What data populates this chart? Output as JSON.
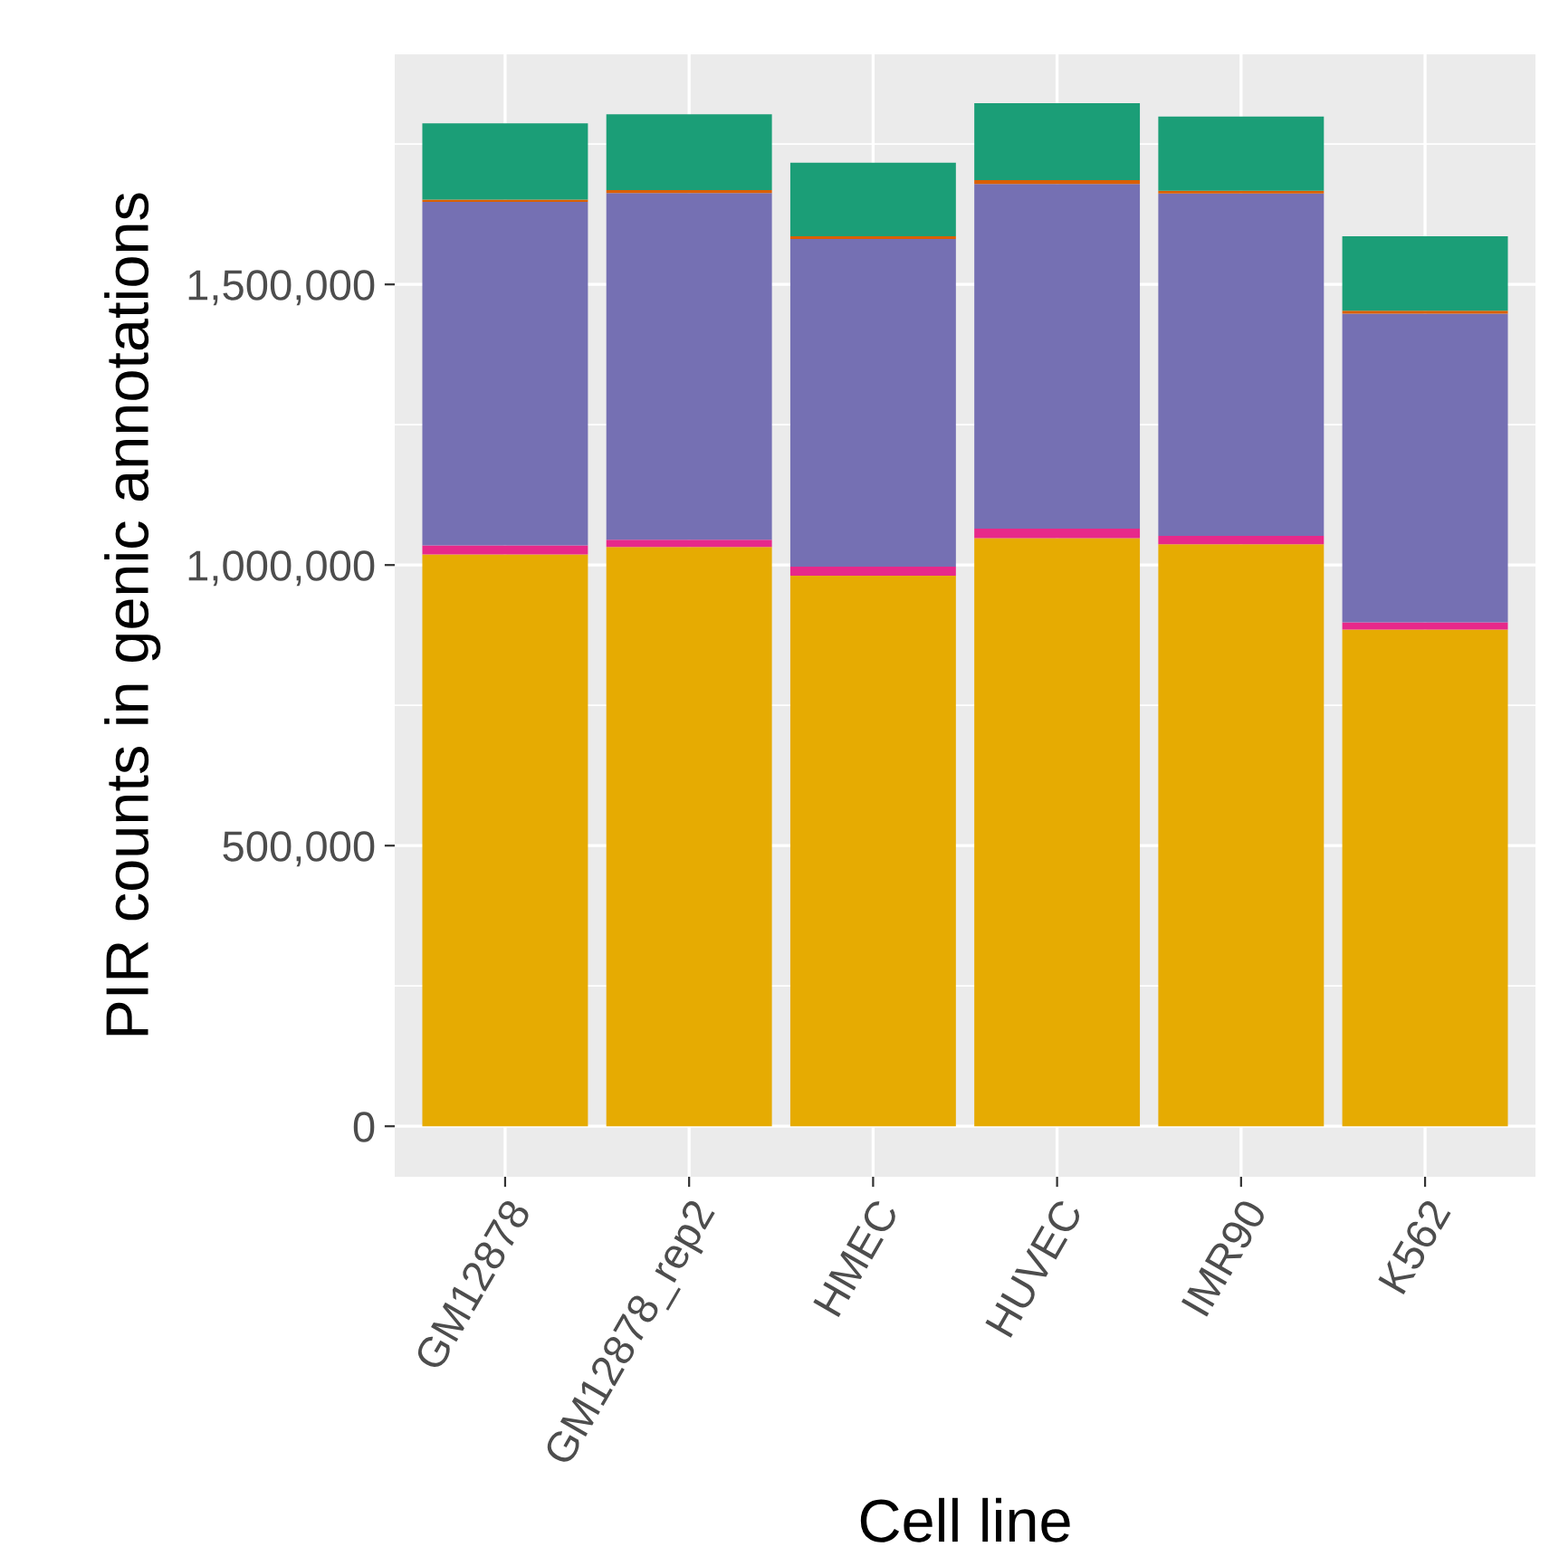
{
  "chart_data": {
    "type": "bar",
    "stacked": true,
    "xlabel": "Cell line",
    "ylabel": "PIR counts in genic annotations",
    "categories": [
      "GM12878",
      "GM12878_rep2",
      "HMEC",
      "HUVEC",
      "IMR90",
      "K562"
    ],
    "series": [
      {
        "color": "#e6ab02",
        "values": [
          1019000,
          1032000,
          981000,
          1048000,
          1037000,
          885000
        ]
      },
      {
        "color": "#e7298a",
        "values": [
          16000,
          13000,
          16000,
          17000,
          15000,
          13000
        ]
      },
      {
        "color": "#7570b3",
        "values": [
          612000,
          618000,
          584000,
          614000,
          610000,
          550000
        ]
      },
      {
        "color": "#d95f02",
        "values": [
          4000,
          5000,
          5000,
          7000,
          5000,
          5000
        ]
      },
      {
        "color": "#1b9e77",
        "values": [
          136000,
          135000,
          131000,
          137000,
          132000,
          133000
        ]
      }
    ],
    "ylim": [
      -90000,
      1910000
    ],
    "yticks": [
      {
        "value": 0,
        "label": "0"
      },
      {
        "value": 500000,
        "label": "500,000"
      },
      {
        "value": 1000000,
        "label": "1,000,000"
      },
      {
        "value": 1500000,
        "label": "1,500,000"
      }
    ],
    "grid": true,
    "legend": false
  }
}
